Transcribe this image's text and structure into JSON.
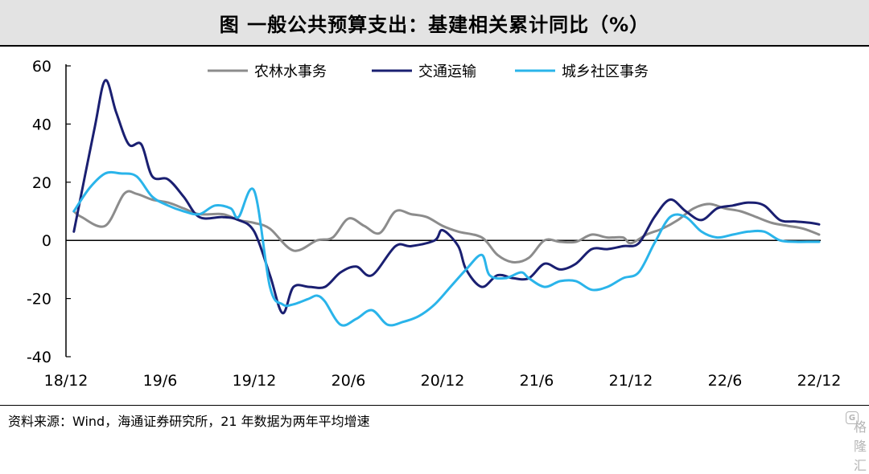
{
  "title": "图 一般公共预算支出：基建相关累计同比（%）",
  "source": "资料来源：Wind，海通证券研究所，21 年数据为两年平均增速",
  "watermark": {
    "icon": "G",
    "text": "格隆汇"
  },
  "chart_data": {
    "type": "line",
    "title": "一般公共预算支出：基建相关累计同比（%）",
    "ylim": [
      -40,
      60
    ],
    "yticks": [
      -40,
      -20,
      0,
      20,
      40,
      60
    ],
    "xlim": [
      0,
      48
    ],
    "xticks": [
      {
        "pos": 0,
        "label": "18/12"
      },
      {
        "pos": 6,
        "label": "19/6"
      },
      {
        "pos": 12,
        "label": "19/12"
      },
      {
        "pos": 18,
        "label": "20/6"
      },
      {
        "pos": 24,
        "label": "20/12"
      },
      {
        "pos": 30,
        "label": "21/6"
      },
      {
        "pos": 36,
        "label": "21/12"
      },
      {
        "pos": 42,
        "label": "22/6"
      },
      {
        "pos": 48,
        "label": "22/12"
      }
    ],
    "legend_position": "top",
    "series": [
      {
        "name": "农林水事务",
        "color": "#8c8c8c",
        "points": [
          [
            0.5,
            10
          ],
          [
            1,
            8
          ],
          [
            2.5,
            5
          ],
          [
            3.7,
            16
          ],
          [
            4.5,
            16
          ],
          [
            5.5,
            14
          ],
          [
            6.5,
            13
          ],
          [
            7.5,
            11
          ],
          [
            8.5,
            9
          ],
          [
            10,
            9
          ],
          [
            11,
            7
          ],
          [
            12,
            6
          ],
          [
            13,
            4
          ],
          [
            14.5,
            -3.5
          ],
          [
            16,
            0
          ],
          [
            17,
            1
          ],
          [
            18,
            7.5
          ],
          [
            19,
            5
          ],
          [
            20,
            2.5
          ],
          [
            21,
            10
          ],
          [
            22,
            9
          ],
          [
            23,
            8
          ],
          [
            24,
            5
          ],
          [
            25,
            3
          ],
          [
            26.5,
            1
          ],
          [
            27.5,
            -5
          ],
          [
            28.5,
            -7.5
          ],
          [
            29.5,
            -6
          ],
          [
            30.5,
            0
          ],
          [
            31.5,
            -0.5
          ],
          [
            32.5,
            -0.5
          ],
          [
            33.5,
            2
          ],
          [
            34.5,
            1
          ],
          [
            35.5,
            1
          ],
          [
            36,
            -1
          ],
          [
            37,
            2
          ],
          [
            38,
            4
          ],
          [
            39,
            7
          ],
          [
            40,
            11
          ],
          [
            41,
            12.5
          ],
          [
            42,
            11
          ],
          [
            43,
            10
          ],
          [
            44,
            8
          ],
          [
            45,
            6
          ],
          [
            46,
            5
          ],
          [
            47,
            4
          ],
          [
            48,
            2
          ]
        ]
      },
      {
        "name": "交通运输",
        "color": "#1a1f71",
        "points": [
          [
            0.5,
            3
          ],
          [
            1.8,
            38
          ],
          [
            2.5,
            55
          ],
          [
            3.2,
            44
          ],
          [
            4,
            33
          ],
          [
            4.8,
            33
          ],
          [
            5.5,
            22
          ],
          [
            6.5,
            21
          ],
          [
            7.5,
            15
          ],
          [
            8.5,
            8
          ],
          [
            10,
            8
          ],
          [
            11,
            7
          ],
          [
            12,
            3
          ],
          [
            13,
            -12
          ],
          [
            13.8,
            -25
          ],
          [
            14.5,
            -16
          ],
          [
            15.5,
            -16
          ],
          [
            16.5,
            -16
          ],
          [
            17.5,
            -11
          ],
          [
            18.5,
            -9
          ],
          [
            19.5,
            -12
          ],
          [
            21,
            -2
          ],
          [
            22,
            -2
          ],
          [
            23.5,
            0
          ],
          [
            24,
            3.5
          ],
          [
            25,
            -2
          ],
          [
            25.5,
            -10
          ],
          [
            26.5,
            -16
          ],
          [
            27.5,
            -12
          ],
          [
            28.5,
            -13
          ],
          [
            29.5,
            -13
          ],
          [
            30.5,
            -8
          ],
          [
            31.5,
            -10
          ],
          [
            32.5,
            -8
          ],
          [
            33.5,
            -3
          ],
          [
            34.5,
            -3
          ],
          [
            35.5,
            -2
          ],
          [
            36.5,
            -1
          ],
          [
            37.5,
            8
          ],
          [
            38.5,
            14
          ],
          [
            39.5,
            10
          ],
          [
            40.5,
            7
          ],
          [
            41.5,
            11
          ],
          [
            42.5,
            12
          ],
          [
            43.5,
            13
          ],
          [
            44.5,
            12
          ],
          [
            45.5,
            7
          ],
          [
            46.5,
            6.5
          ],
          [
            47.5,
            6
          ],
          [
            48,
            5.5
          ]
        ]
      },
      {
        "name": "城乡社区事务",
        "color": "#2ab4ea",
        "points": [
          [
            0.5,
            10
          ],
          [
            1.5,
            18
          ],
          [
            2.5,
            23
          ],
          [
            3.5,
            23
          ],
          [
            4.5,
            22
          ],
          [
            5.5,
            15
          ],
          [
            6.5,
            12
          ],
          [
            7.5,
            10
          ],
          [
            8.5,
            9
          ],
          [
            9.5,
            12
          ],
          [
            10.5,
            11
          ],
          [
            11,
            8
          ],
          [
            12,
            17
          ],
          [
            13,
            -16
          ],
          [
            13.8,
            -22
          ],
          [
            14.5,
            -22
          ],
          [
            15.5,
            -20
          ],
          [
            16,
            -19
          ],
          [
            16.5,
            -21
          ],
          [
            17.5,
            -29
          ],
          [
            18.5,
            -27
          ],
          [
            19.5,
            -24
          ],
          [
            20.5,
            -29
          ],
          [
            21.5,
            -28
          ],
          [
            22.5,
            -26
          ],
          [
            23.5,
            -22
          ],
          [
            24.5,
            -16
          ],
          [
            25.5,
            -10
          ],
          [
            26.5,
            -5
          ],
          [
            27,
            -12
          ],
          [
            28,
            -13
          ],
          [
            29,
            -11
          ],
          [
            29.5,
            -13
          ],
          [
            30.5,
            -16
          ],
          [
            31.5,
            -14
          ],
          [
            32.5,
            -14
          ],
          [
            33.5,
            -17
          ],
          [
            34.5,
            -16
          ],
          [
            35.5,
            -13
          ],
          [
            36.5,
            -11
          ],
          [
            37.5,
            -1
          ],
          [
            38.5,
            8
          ],
          [
            39.5,
            8
          ],
          [
            40.5,
            3
          ],
          [
            41.5,
            1
          ],
          [
            42.5,
            2
          ],
          [
            43.5,
            3
          ],
          [
            44.5,
            3
          ],
          [
            45.5,
            0
          ],
          [
            46.5,
            -0.5
          ],
          [
            47.5,
            -0.5
          ],
          [
            48,
            -0.5
          ]
        ]
      }
    ]
  }
}
